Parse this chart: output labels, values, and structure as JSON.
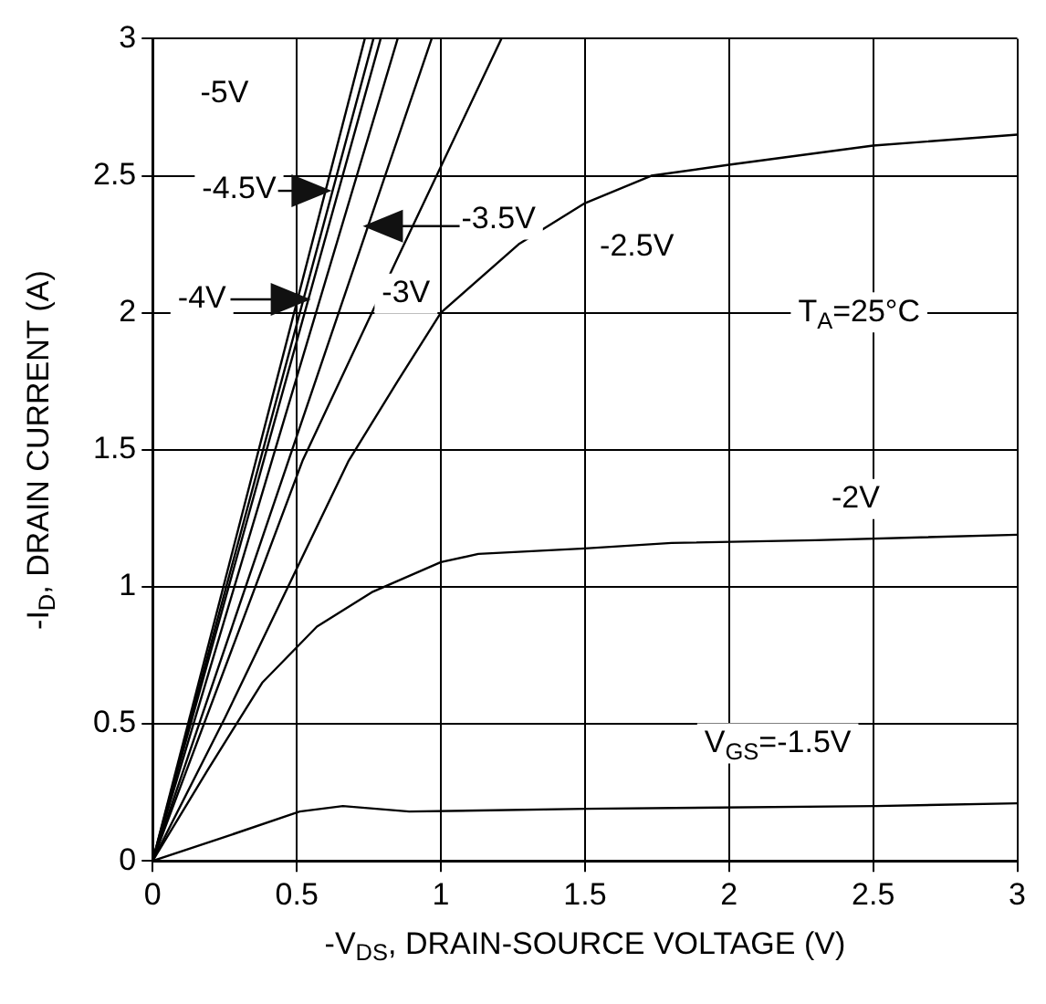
{
  "chart_data": {
    "type": "line",
    "xlabel": "-V$_{DS}$, DRAIN-SOURCE VOLTAGE (V)",
    "ylabel": "-I$_{D}$, DRAIN CURRENT (A)",
    "xlim": [
      0,
      3
    ],
    "xticks": [
      0,
      0.5,
      1,
      1.5,
      2,
      2.5,
      3
    ],
    "ylim": [
      0,
      3
    ],
    "yticks": [
      0,
      0.5,
      1,
      1.5,
      2,
      2.5,
      3
    ],
    "grid": true,
    "legend": false,
    "marker": "none",
    "line_style": "solid",
    "series": [
      {
        "color": "#000000",
        "x": [
          0,
          0.736
        ],
        "values": [
          0,
          3
        ]
      },
      {
        "color": "#000000",
        "x": [
          0,
          0.766
        ],
        "values": [
          0,
          3
        ]
      },
      {
        "color": "#000000",
        "x": [
          0,
          0.791
        ],
        "values": [
          0,
          3
        ]
      },
      {
        "color": "#000000",
        "x": [
          0,
          0.85
        ],
        "values": [
          0,
          3
        ]
      },
      {
        "color": "#000000",
        "x": [
          0,
          0.968
        ],
        "values": [
          0,
          3
        ]
      },
      {
        "color": "#000000",
        "x": [
          0,
          0.52,
          0.85,
          1.21
        ],
        "values": [
          0,
          1.46,
          2.2,
          3
        ]
      },
      {
        "color": "#000000",
        "x": [
          0,
          0.25,
          0.68,
          0.85,
          1,
          1.27,
          1.5,
          1.73,
          2,
          2.5,
          3
        ],
        "values": [
          0,
          0.52,
          1.46,
          1.75,
          2.0,
          2.25,
          2.4,
          2.5,
          2.54,
          2.61,
          2.65
        ]
      },
      {
        "color": "#000000",
        "x": [
          0,
          0.19,
          0.38,
          0.57,
          0.76,
          1,
          1.13,
          1.5,
          1.8,
          2.3,
          3
        ],
        "values": [
          0,
          0.33,
          0.65,
          0.855,
          0.98,
          1.09,
          1.12,
          1.14,
          1.16,
          1.17,
          1.19
        ]
      },
      {
        "color": "#000000",
        "x": [
          0,
          0.23,
          0.51,
          0.66,
          0.89,
          1.5,
          2.51,
          3
        ],
        "values": [
          0,
          0.08,
          0.18,
          0.2,
          0.18,
          0.19,
          0.2,
          0.21
        ]
      }
    ],
    "annotations": [
      "-5V",
      "-4.5V",
      "-4V",
      "-3.5V",
      "-3V",
      "-2.5V",
      "T$_{A}$=25°C",
      "-2V",
      "V$_{GS}$=-1.5V"
    ]
  }
}
